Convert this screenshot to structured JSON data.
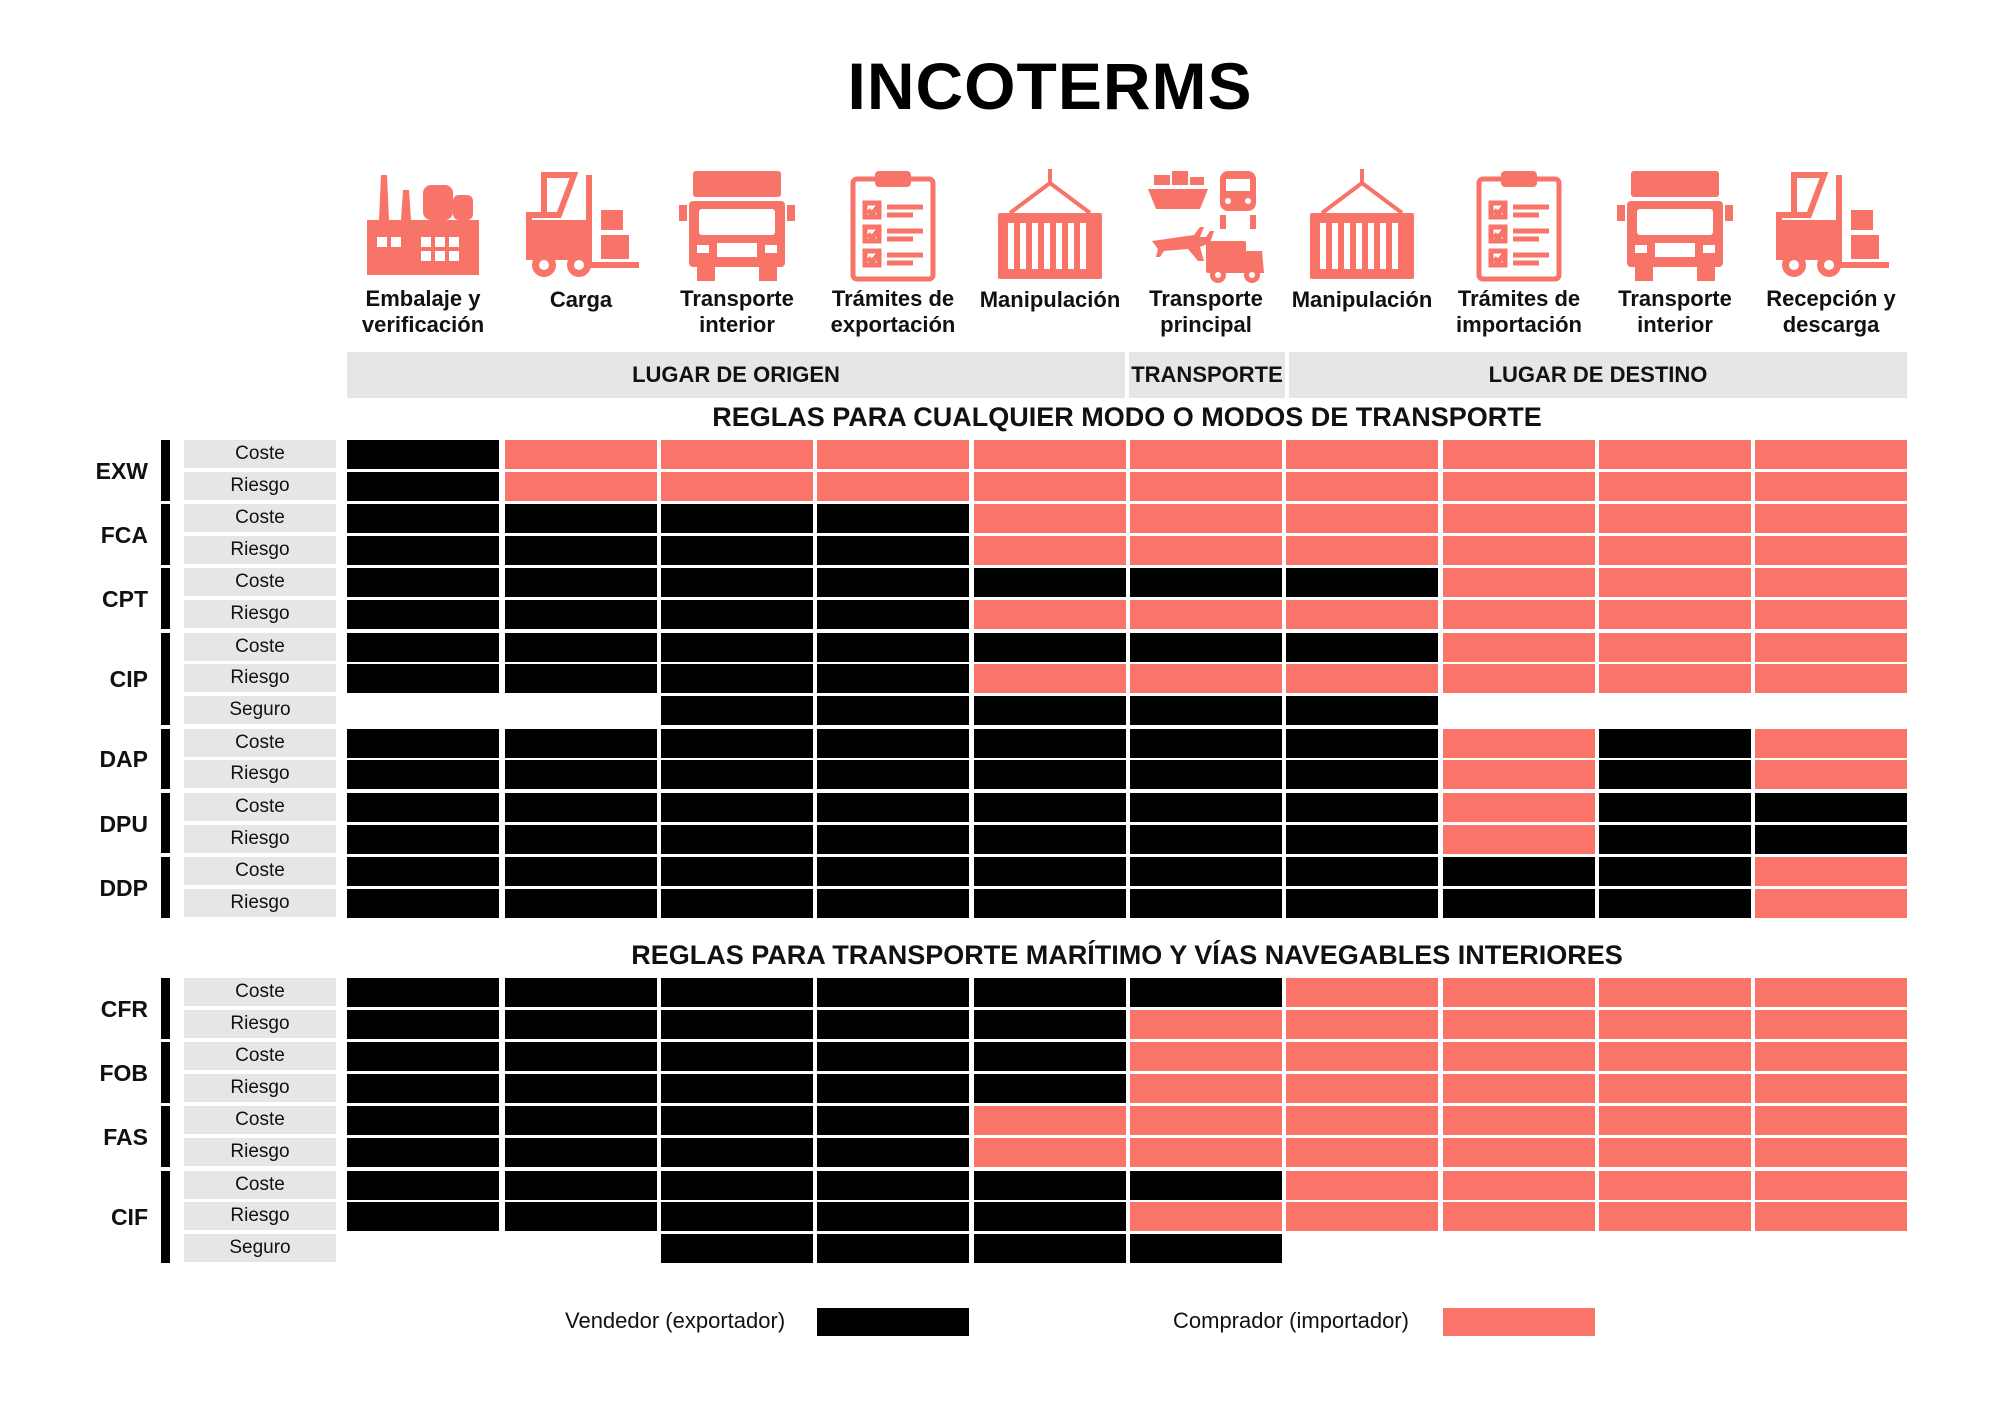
{
  "title": "INCOTERMS",
  "colors": {
    "seller": "#000000",
    "buyer": "#fb7469",
    "icon": "#f87468",
    "label_bg": "#e6e6e6"
  },
  "stages": [
    {
      "label_line1": "Embalaje y",
      "label_line2": "verificación",
      "icon": "factory-icon"
    },
    {
      "label_line1": "Carga",
      "label_line2": "",
      "icon": "forklift-icon"
    },
    {
      "label_line1": "Transporte",
      "label_line2": "interior",
      "icon": "truck-icon"
    },
    {
      "label_line1": "Trámites de",
      "label_line2": "exportación",
      "icon": "clipboard-icon"
    },
    {
      "label_line1": "Manipulación",
      "label_line2": "",
      "icon": "container-crane-icon"
    },
    {
      "label_line1": "Transporte",
      "label_line2": "principal",
      "icon": "multimodal-transport-icon"
    },
    {
      "label_line1": "Manipulación",
      "label_line2": "",
      "icon": "container-crane-icon"
    },
    {
      "label_line1": "Trámites de",
      "label_line2": "importación",
      "icon": "clipboard-icon"
    },
    {
      "label_line1": "Transporte",
      "label_line2": "interior",
      "icon": "truck-icon"
    },
    {
      "label_line1": "Recepción y",
      "label_line2": "descarga",
      "icon": "forklift-icon"
    }
  ],
  "sections": {
    "origin": "LUGAR DE ORIGEN",
    "transport": "TRANSPORTE",
    "destination": "LUGAR DE DESTINO"
  },
  "rule_groups": [
    {
      "title": "REGLAS PARA CUALQUIER MODO O MODOS DE TRANSPORTE",
      "terms": [
        {
          "code": "EXW",
          "rows": [
            {
              "label": "Coste",
              "cells": "SBBBBBBBBB"
            },
            {
              "label": "Riesgo",
              "cells": "SBBBBBBBBB"
            }
          ]
        },
        {
          "code": "FCA",
          "rows": [
            {
              "label": "Coste",
              "cells": "SSSSBBBBBB"
            },
            {
              "label": "Riesgo",
              "cells": "SSSSBBBBBB"
            }
          ]
        },
        {
          "code": "CPT",
          "rows": [
            {
              "label": "Coste",
              "cells": "SSSSSSSBBB"
            },
            {
              "label": "Riesgo",
              "cells": "SSSSBBBBBB"
            }
          ]
        },
        {
          "code": "CIP",
          "rows": [
            {
              "label": "Coste",
              "cells": "SSSSSSSBBB"
            },
            {
              "label": "Riesgo",
              "cells": "SSSSBBBBBB"
            },
            {
              "label": "Seguro",
              "cells": "--SSSSS---"
            }
          ]
        },
        {
          "code": "DAP",
          "rows": [
            {
              "label": "Coste",
              "cells": "SSSSSSSBSB"
            },
            {
              "label": "Riesgo",
              "cells": "SSSSSSSBSB"
            }
          ]
        },
        {
          "code": "DPU",
          "rows": [
            {
              "label": "Coste",
              "cells": "SSSSSSSBSS"
            },
            {
              "label": "Riesgo",
              "cells": "SSSSSSSBSS"
            }
          ]
        },
        {
          "code": "DDP",
          "rows": [
            {
              "label": "Coste",
              "cells": "SSSSSSSSSB"
            },
            {
              "label": "Riesgo",
              "cells": "SSSSSSSSSB"
            }
          ]
        }
      ]
    },
    {
      "title": "REGLAS PARA TRANSPORTE MARÍTIMO Y VÍAS NAVEGABLES INTERIORES",
      "terms": [
        {
          "code": "CFR",
          "rows": [
            {
              "label": "Coste",
              "cells": "SSSSSSBBBB"
            },
            {
              "label": "Riesgo",
              "cells": "SSSSSBBBBB"
            }
          ]
        },
        {
          "code": "FOB",
          "rows": [
            {
              "label": "Coste",
              "cells": "SSSSSBBBBB"
            },
            {
              "label": "Riesgo",
              "cells": "SSSSSBBBBB"
            }
          ]
        },
        {
          "code": "FAS",
          "rows": [
            {
              "label": "Coste",
              "cells": "SSSSBBBBBB"
            },
            {
              "label": "Riesgo",
              "cells": "SSSSBBBBBB"
            }
          ]
        },
        {
          "code": "CIF",
          "rows": [
            {
              "label": "Coste",
              "cells": "SSSSSSBBBB"
            },
            {
              "label": "Riesgo",
              "cells": "SSSSSBBBBB"
            },
            {
              "label": "Seguro",
              "cells": "--SSSS----"
            }
          ]
        }
      ]
    }
  ],
  "legend": {
    "seller": "Vendedor (exportador)",
    "buyer": "Comprador (importador)"
  }
}
